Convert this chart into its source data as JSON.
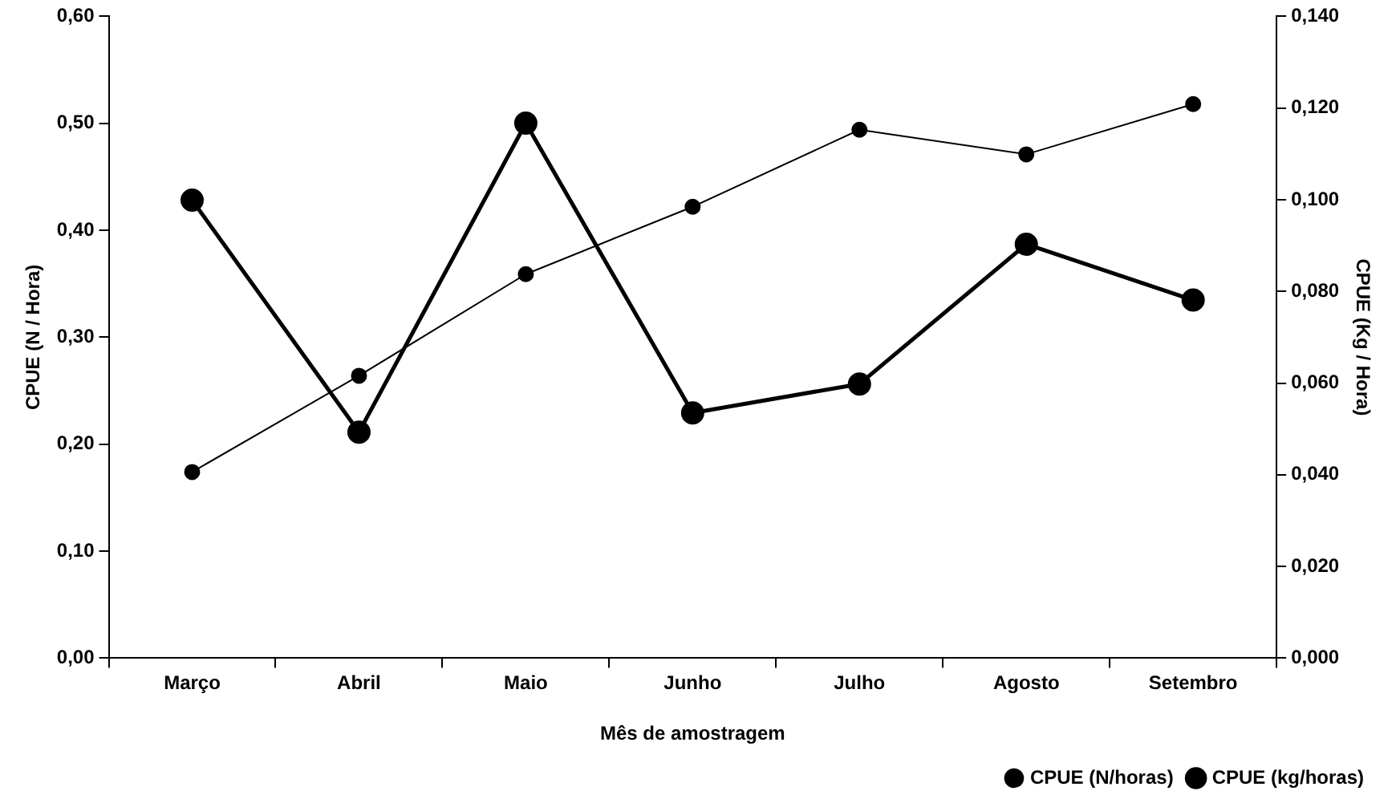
{
  "chart_data": {
    "type": "line",
    "xlabel": "Mês de amostragem",
    "ylabel": "CPUE (N / Hora)",
    "y2label": "CPUE (Kg / Hora)",
    "categories": [
      "Março",
      "Abril",
      "Maio",
      "Junho",
      "Julho",
      "Agosto",
      "Setembro"
    ],
    "series": [
      {
        "name": "CPUE (N/horas)",
        "color": "#000000",
        "values": [
          0.174,
          0.264,
          0.359,
          0.422,
          0.494,
          0.471,
          0.518
        ]
      },
      {
        "name": "CPUE (kg/horas)",
        "color": "#000000",
        "axis": "y2",
        "values": [
          0.0999,
          0.0493,
          0.1167,
          0.0535,
          0.0598,
          0.0903,
          0.0781
        ]
      }
    ],
    "ylim": [
      0,
      0.6
    ],
    "yticks": [
      {
        "value": 0,
        "label": "0,00"
      },
      {
        "value": 0.1,
        "label": "0,10"
      },
      {
        "value": 0.2,
        "label": "0,20"
      },
      {
        "value": 0.3,
        "label": "0,30"
      },
      {
        "value": 0.4,
        "label": "0,40"
      },
      {
        "value": 0.5,
        "label": "0,50"
      },
      {
        "value": 0.6,
        "label": "0,60"
      }
    ],
    "y2lim": [
      0,
      0.14
    ],
    "y2ticks": [
      {
        "value": 0,
        "label": "0,000"
      },
      {
        "value": 0.02,
        "label": "0,020"
      },
      {
        "value": 0.04,
        "label": "0,040"
      },
      {
        "value": 0.06,
        "label": "0,060"
      },
      {
        "value": 0.08,
        "label": "0,080"
      },
      {
        "value": 0.1,
        "label": "0,100"
      },
      {
        "value": 0.12,
        "label": "0,120"
      },
      {
        "value": 0.14,
        "label": "0,140"
      }
    ],
    "grid": false,
    "legend": "bottom right",
    "marker": "circle",
    "line_style": "solid"
  }
}
